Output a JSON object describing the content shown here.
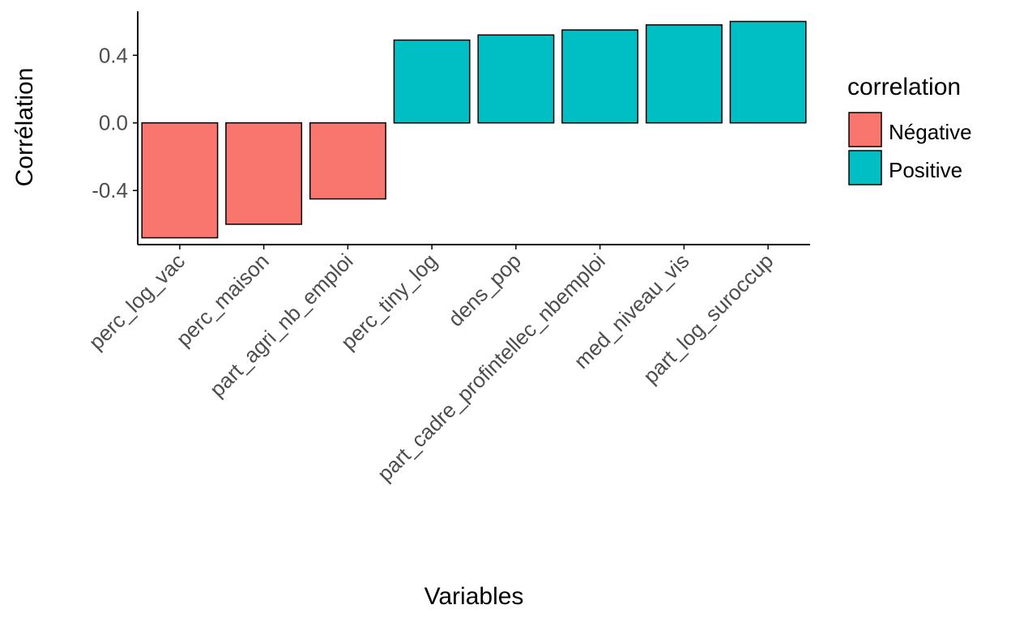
{
  "chart_data": {
    "type": "bar",
    "categories": [
      "perc_log_vac",
      "perc_maison",
      "part_agri_nb_emploi",
      "perc_tiny_log",
      "dens_pop",
      "part_cadre_profintellec_nbemploi",
      "med_niveau_vis",
      "part_log_suroccup"
    ],
    "values": [
      -0.68,
      -0.6,
      -0.45,
      0.49,
      0.52,
      0.55,
      0.58,
      0.6
    ],
    "groups": [
      "Négative",
      "Négative",
      "Négative",
      "Positive",
      "Positive",
      "Positive",
      "Positive",
      "Positive"
    ],
    "xlabel": "Variables",
    "ylabel": "Corrélation",
    "yticks": [
      -0.4,
      0.0,
      0.4
    ],
    "ytick_labels": [
      "-0.4",
      "0.0",
      "0.4"
    ],
    "ylim": [
      -0.72,
      0.66
    ],
    "grid": false,
    "legend": {
      "title": "correlation",
      "placement": "right",
      "items": [
        {
          "label": "Négative",
          "color": "#F8766D"
        },
        {
          "label": "Positive",
          "color": "#00BFC4"
        }
      ]
    }
  }
}
